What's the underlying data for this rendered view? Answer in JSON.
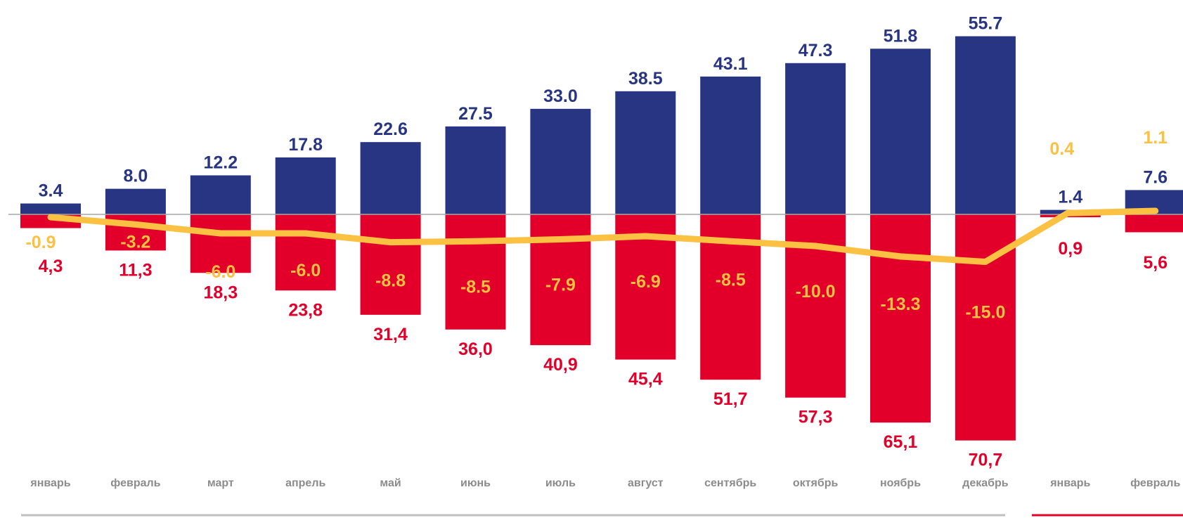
{
  "chart_data": {
    "type": "bar",
    "categories": [
      "январь",
      "февраль",
      "март",
      "апрель",
      "май",
      "июнь",
      "июль",
      "август",
      "сентябрь",
      "октябрь",
      "ноябрь",
      "декабрь",
      "январь",
      "февраль"
    ],
    "series": [
      {
        "kind": "bar-up",
        "values": [
          3.4,
          8.0,
          12.2,
          17.8,
          22.6,
          27.5,
          33.0,
          38.5,
          43.1,
          47.3,
          51.8,
          55.7,
          1.4,
          7.6
        ],
        "labels": [
          "3.4",
          "8.0",
          "12.2",
          "17.8",
          "22.6",
          "27.5",
          "33.0",
          "38.5",
          "43.1",
          "47.3",
          "51.8",
          "55.7",
          "1.4",
          "7.6"
        ]
      },
      {
        "kind": "bar-down",
        "values": [
          4.3,
          11.3,
          18.3,
          23.8,
          31.4,
          36.0,
          40.9,
          45.4,
          51.7,
          57.3,
          65.1,
          70.7,
          0.9,
          5.6
        ],
        "labels": [
          "4,3",
          "11,3",
          "18,3",
          "23,8",
          "31,4",
          "36,0",
          "40,9",
          "45,4",
          "51,7",
          "57,3",
          "65,1",
          "70,7",
          "0,9",
          "5,6"
        ]
      },
      {
        "kind": "line",
        "values": [
          -0.9,
          -3.2,
          -6.0,
          -6.0,
          -8.8,
          -8.5,
          -7.9,
          -6.9,
          -8.5,
          -10.0,
          -13.3,
          -15.0,
          0.4,
          1.1
        ],
        "labels": [
          "-0.9",
          "-3.2",
          "-6.0",
          "-6.0",
          "-8.8",
          "-8.5",
          "-7.9",
          "-6.9",
          "-8.5",
          "-10.0",
          "-13.3",
          "-15.0",
          "0.4",
          "1.1"
        ]
      }
    ],
    "colors": {
      "up": "#283583",
      "down": "#e2002b",
      "line": "#fbc143",
      "axis": "#a6a6a6",
      "category": "#8c8c8c",
      "bracket_left": "#bfbfbf",
      "bracket_right": "#e2002b"
    },
    "grid": false,
    "legend": "none"
  }
}
